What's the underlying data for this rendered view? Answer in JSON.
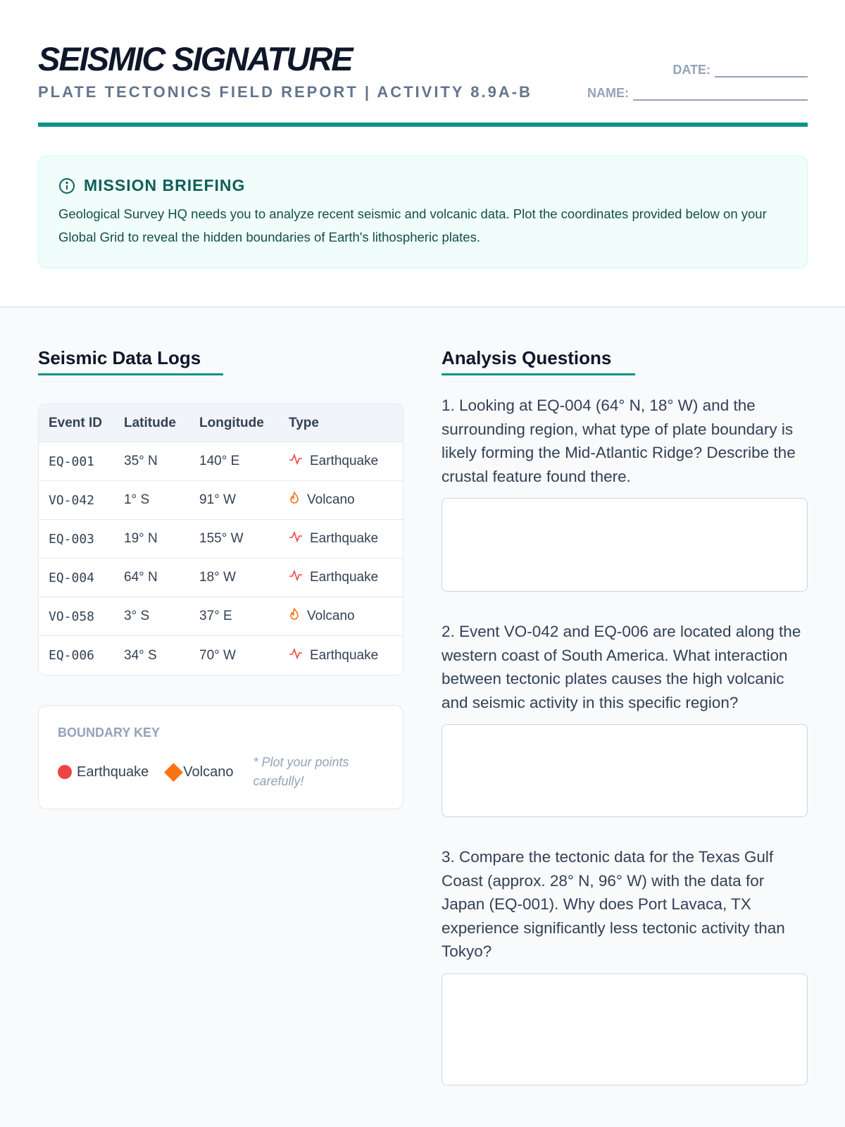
{
  "header": {
    "title": "SEISMIC SIGNATURE",
    "subtitle": "PLATE TECTONICS FIELD REPORT | ACTIVITY 8.9A-B",
    "date_label": "DATE:",
    "name_label": "NAME:"
  },
  "briefing": {
    "icon": "info-icon",
    "title": "MISSION BRIEFING",
    "text": "Geological Survey HQ needs you to analyze recent seismic and volcanic data. Plot the coordinates provided below on your Global Grid to reveal the hidden boundaries of Earth's lithospheric plates."
  },
  "logs": {
    "heading": "Seismic Data Logs",
    "columns": [
      "Event ID",
      "Latitude",
      "Longitude",
      "Type"
    ],
    "rows": [
      {
        "id": "EQ-001",
        "lat": "35° N",
        "lon": "140° E",
        "type": "Earthquake",
        "icon": "seismic-wave-icon"
      },
      {
        "id": "VO-042",
        "lat": "1° S",
        "lon": "91° W",
        "type": "Volcano",
        "icon": "flame-icon"
      },
      {
        "id": "EQ-003",
        "lat": "19° N",
        "lon": "155° W",
        "type": "Earthquake",
        "icon": "seismic-wave-icon"
      },
      {
        "id": "EQ-004",
        "lat": "64° N",
        "lon": "18° W",
        "type": "Earthquake",
        "icon": "seismic-wave-icon"
      },
      {
        "id": "VO-058",
        "lat": "3° S",
        "lon": "37° E",
        "type": "Volcano",
        "icon": "flame-icon"
      },
      {
        "id": "EQ-006",
        "lat": "34° S",
        "lon": "70° W",
        "type": "Earthquake",
        "icon": "seismic-wave-icon"
      }
    ]
  },
  "key": {
    "title": "BOUNDARY KEY",
    "earthquake": "Earthquake",
    "volcano": "Volcano",
    "note": "* Plot your points carefully!",
    "colors": {
      "earthquake": "#ef4444",
      "volcano": "#f97316"
    }
  },
  "questions": {
    "heading": "Analysis Questions",
    "items": [
      "1. Looking at EQ-004 (64° N, 18° W) and the surrounding region, what type of plate boundary is likely forming the Mid-Atlantic Ridge? Describe the crustal feature found there.",
      "2. Event VO-042 and EQ-006 are located along the western coast of South America. What interaction between tectonic plates causes the high volcanic and seismic activity in this specific region?",
      "3. Compare the tectonic data for the Texas Gulf Coast (approx. 28° N, 96° W) with the data for Japan (EQ-001). Why does Port Lavaca, TX experience significantly less tectonic activity than Tokyo?"
    ]
  },
  "accent": "#0d9488"
}
